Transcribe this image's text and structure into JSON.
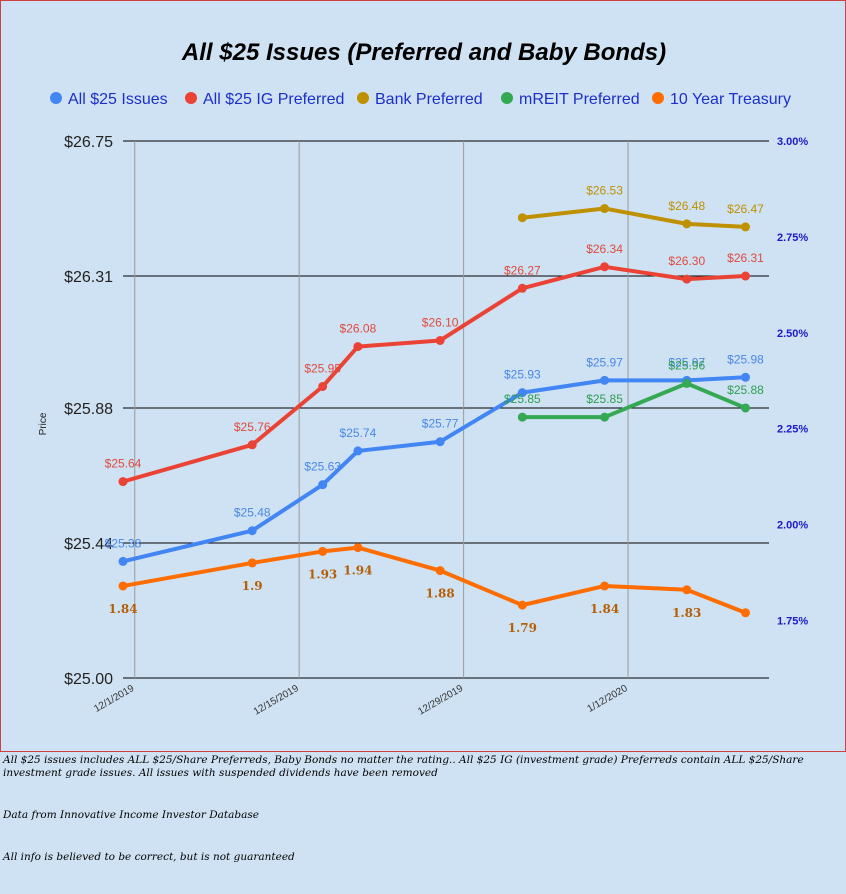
{
  "chart_data": {
    "type": "line",
    "title": "All $25 Issues (Preferred and Baby Bonds)",
    "ylabel": "Price",
    "ylim": [
      25.0,
      26.75
    ],
    "y_ticks": [
      "$25.00",
      "$25.44",
      "$25.88",
      "$26.31",
      "$26.75"
    ],
    "y2lim": [
      1.6,
      3.0
    ],
    "y2_ticks": [
      "1.75%",
      "2.00%",
      "2.25%",
      "2.50%",
      "2.75%",
      "3.00%"
    ],
    "x_ticks": [
      "12/1/2019",
      "12/15/2019",
      "12/29/2019",
      "1/12/2020"
    ],
    "legend_position": "top",
    "grid": true,
    "x": [
      "2019-11-30",
      "2019-12-11",
      "2019-12-17",
      "2019-12-20",
      "2019-12-27",
      "2020-01-03",
      "2020-01-10",
      "2020-01-17",
      "2020-01-22"
    ],
    "series": [
      {
        "name": "All $25 Issues",
        "color": "#4285f4",
        "axis": "left",
        "values": [
          25.38,
          25.48,
          25.63,
          25.74,
          25.77,
          25.93,
          25.97,
          25.97,
          25.98
        ],
        "labels": [
          "$25.38",
          "$25.48",
          "$25.63",
          "$25.74",
          "$25.77",
          "$25.93",
          "$25.97",
          "$25.97",
          "$25.98"
        ]
      },
      {
        "name": "All $25 IG Preferred",
        "color": "#ea4335",
        "axis": "left",
        "values": [
          25.64,
          25.76,
          25.95,
          26.08,
          26.1,
          26.27,
          26.34,
          26.3,
          26.31
        ],
        "labels": [
          "$25.64",
          "$25.76",
          "$25.95",
          "$26.08",
          "$26.10",
          "$26.27",
          "$26.34",
          "$26.30",
          "$26.31"
        ]
      },
      {
        "name": "Bank Preferred",
        "color": "#bf9000",
        "axis": "left",
        "values": [
          null,
          null,
          null,
          null,
          null,
          26.5,
          26.53,
          26.48,
          26.47
        ],
        "labels": [
          null,
          null,
          null,
          null,
          null,
          null,
          "$26.53",
          "$26.48",
          "$26.47"
        ]
      },
      {
        "name": "mREIT Preferred",
        "color": "#34a853",
        "axis": "left",
        "values": [
          null,
          null,
          null,
          null,
          null,
          25.85,
          25.85,
          25.96,
          25.88
        ],
        "labels": [
          null,
          null,
          null,
          null,
          null,
          "$25.85",
          "$25.85",
          "$25.96",
          "$25.88"
        ]
      },
      {
        "name": "10 Year Treasury",
        "color": "#ff6d01",
        "axis": "right",
        "values": [
          1.84,
          1.9,
          1.93,
          1.94,
          1.88,
          1.79,
          1.84,
          1.83,
          1.77
        ],
        "labels": [
          "1.84",
          "1.9",
          "1.93",
          "1.94",
          "1.88",
          "1.79",
          "1.84",
          "1.83",
          null
        ]
      }
    ]
  },
  "notes": {
    "line1": "All $25 issues includes ALL $25/Share Preferreds, Baby Bonds no matter the rating..  All $25 IG (investment grade) Preferreds contain ALL $25/Share investment grade issues.  All issues with suspended dividends have been removed",
    "line2": "Data from Innovative Income Investor Database",
    "line3": "All info is believed to be correct, but is not guaranteed"
  }
}
